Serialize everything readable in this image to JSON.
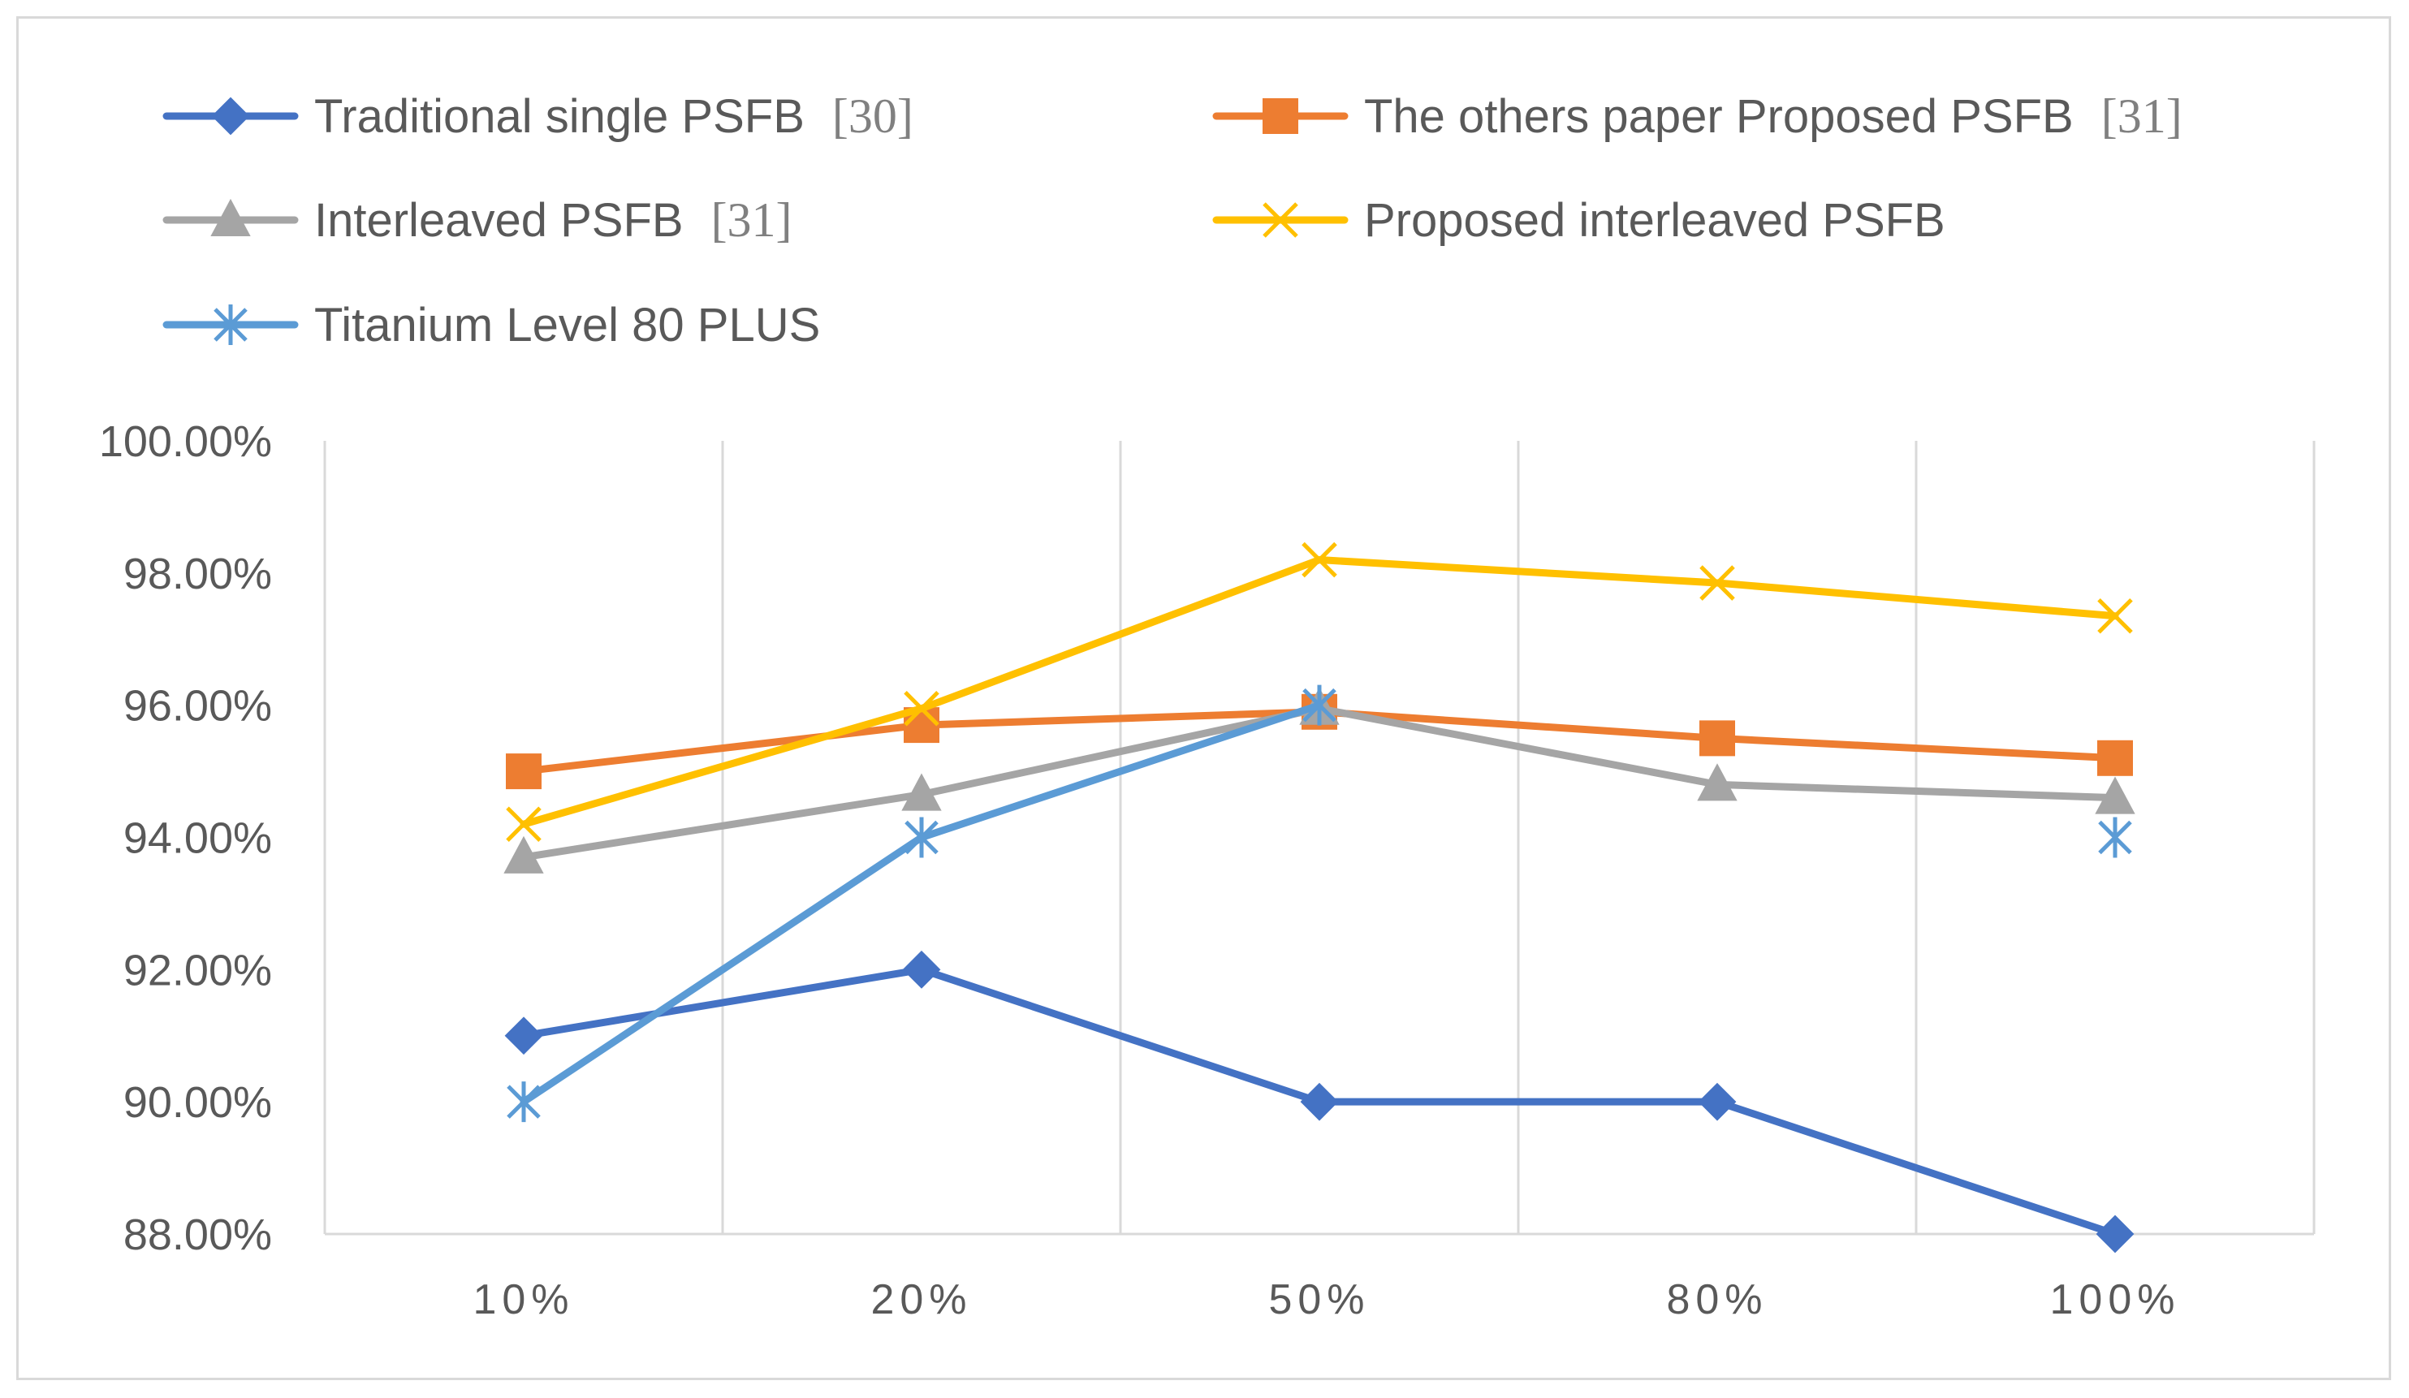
{
  "chart_data": {
    "type": "line",
    "title": "",
    "xlabel": "",
    "ylabel": "",
    "categories": [
      "10%",
      "20%",
      "50%",
      "80%",
      "100%"
    ],
    "ylim": [
      88,
      100
    ],
    "yticks": [
      88,
      90,
      92,
      94,
      96,
      98,
      100
    ],
    "ytick_labels": [
      "88.00%",
      "90.00%",
      "92.00%",
      "94.00%",
      "96.00%",
      "98.00%",
      "100.00%"
    ],
    "grid": "vertical",
    "legend_position": "top",
    "series": [
      {
        "name": "Traditional single PSFB",
        "ref": "[30]",
        "color": "#4472c4",
        "marker": "diamond",
        "values": [
          91.0,
          92.0,
          90.0,
          90.0,
          88.0
        ]
      },
      {
        "name": "The others paper Proposed PSFB",
        "ref": "[31]",
        "color": "#ed7d31",
        "marker": "square",
        "values": [
          95.0,
          95.7,
          95.9,
          95.5,
          95.2
        ]
      },
      {
        "name": "Interleaved PSFB",
        "ref": "[31]",
        "color": "#a5a5a5",
        "marker": "triangle",
        "values": [
          93.7,
          94.65,
          95.95,
          94.8,
          94.6
        ]
      },
      {
        "name": "Proposed interleaved PSFB",
        "ref": "",
        "color": "#ffc000",
        "marker": "x",
        "values": [
          94.2,
          95.95,
          98.2,
          97.85,
          97.35
        ]
      },
      {
        "name": "Titanium Level 80 PLUS",
        "ref": "",
        "color": "#5b9bd5",
        "marker": "asterisk",
        "values": [
          90.0,
          94.0,
          96.0,
          null,
          94.0
        ]
      }
    ]
  }
}
